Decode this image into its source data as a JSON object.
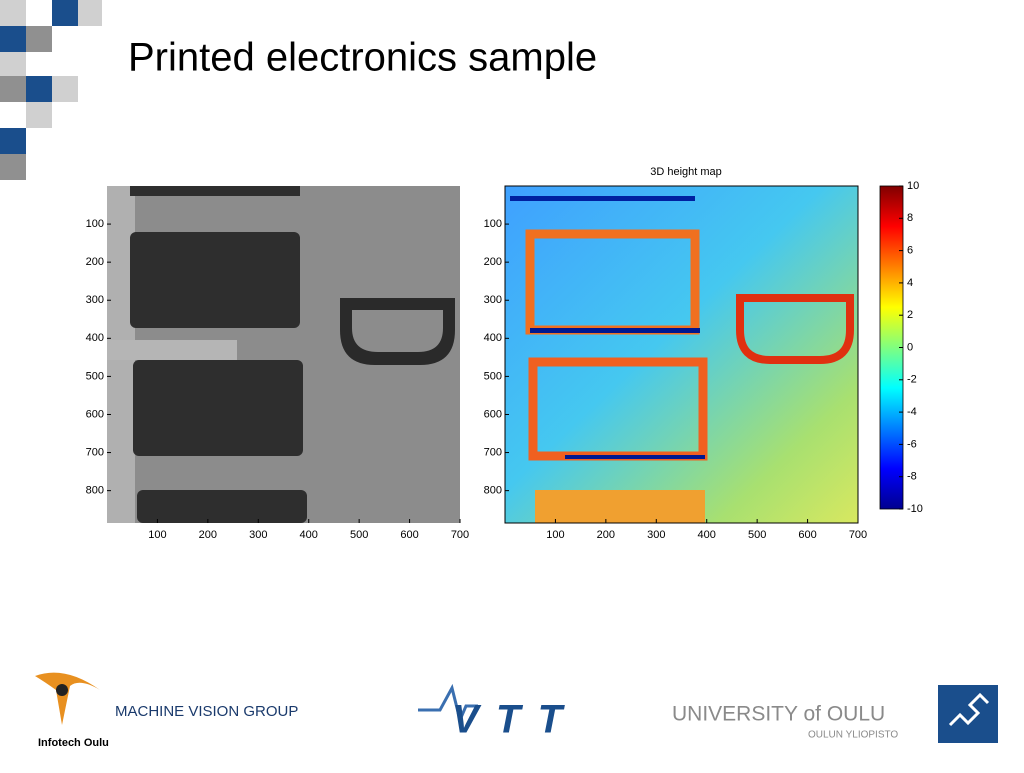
{
  "title": "Printed electronics sample",
  "left_image": {
    "xlim": [
      0,
      700
    ],
    "ylim": [
      0,
      885
    ],
    "xticks": [
      100,
      200,
      300,
      400,
      500,
      600,
      700
    ],
    "yticks": [
      100,
      200,
      300,
      400,
      500,
      600,
      700,
      800
    ]
  },
  "right_image": {
    "title": "3D height map",
    "xlim": [
      0,
      700
    ],
    "ylim": [
      0,
      885
    ],
    "xticks": [
      100,
      200,
      300,
      400,
      500,
      600,
      700
    ],
    "yticks": [
      100,
      200,
      300,
      400,
      500,
      600,
      700,
      800
    ],
    "colorbar_lim": [
      -10,
      10
    ],
    "colorbar_ticks": [
      10,
      8,
      6,
      4,
      2,
      0,
      -2,
      -4,
      -6,
      -8,
      -10
    ]
  },
  "footer": {
    "logo_infotech": "Infotech Oulu",
    "group": "MACHINE VISION GROUP",
    "logo_vtt": "VTT",
    "university": "UNIVERSITY of OULU",
    "university_sub": "OULUN YLIOPISTO"
  }
}
